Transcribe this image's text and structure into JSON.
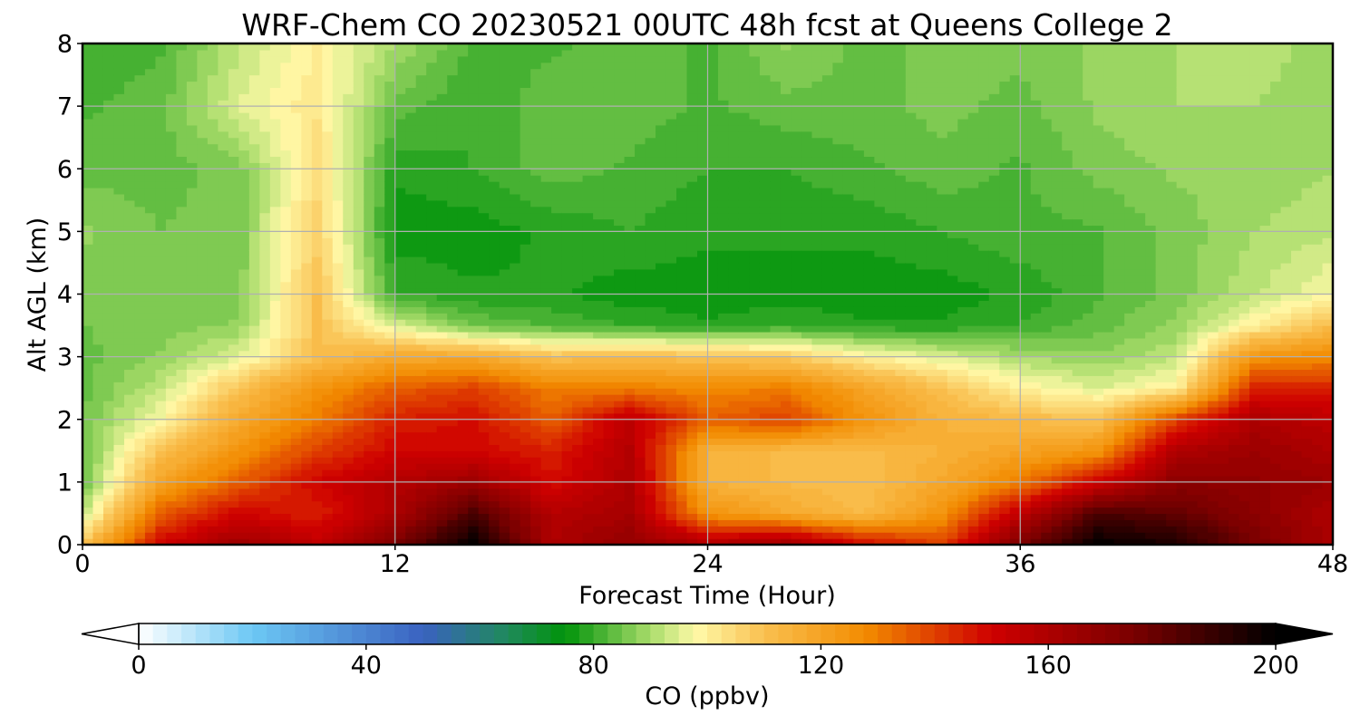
{
  "chart_data": {
    "type": "heatmap",
    "title": "WRF-Chem CO  20230521 00UTC 48h fcst at Queens College 2",
    "xlabel": "Forecast Time (Hour)",
    "ylabel": "Alt AGL (km)",
    "xlim": [
      0,
      48
    ],
    "ylim": [
      0,
      8
    ],
    "xticks": [
      0,
      12,
      24,
      36,
      48
    ],
    "yticks": [
      0,
      1,
      2,
      3,
      4,
      5,
      6,
      7,
      8
    ],
    "grid": true,
    "colorbar": {
      "label": "CO  (ppbv)",
      "vmin": 0,
      "vmax": 200,
      "ticks": [
        0,
        40,
        80,
        120,
        160,
        200
      ],
      "extend": "both",
      "stops": [
        {
          "v": 0,
          "color": "#ffffff"
        },
        {
          "v": 20,
          "color": "#6cc8f4"
        },
        {
          "v": 50,
          "color": "#3a62c0"
        },
        {
          "v": 65,
          "color": "#1f8a5a"
        },
        {
          "v": 75,
          "color": "#00930a"
        },
        {
          "v": 90,
          "color": "#a9dc6a"
        },
        {
          "v": 98,
          "color": "#fffaa8"
        },
        {
          "v": 110,
          "color": "#f9c050"
        },
        {
          "v": 128,
          "color": "#f28b00"
        },
        {
          "v": 150,
          "color": "#cf0000"
        },
        {
          "v": 175,
          "color": "#7a0000"
        },
        {
          "v": 200,
          "color": "#000000"
        }
      ]
    },
    "grid_x_hours": [
      0,
      3,
      6,
      9,
      12,
      15,
      18,
      21,
      24,
      27,
      30,
      33,
      36,
      39,
      42,
      45,
      48
    ],
    "grid_z_km": [
      0,
      0.5,
      1,
      1.5,
      2,
      2.5,
      3,
      3.5,
      4,
      5,
      6,
      7,
      8
    ],
    "values_ppbv": [
      [
        110,
        150,
        165,
        155,
        175,
        200,
        160,
        168,
        160,
        165,
        150,
        140,
        175,
        200,
        195,
        175,
        160
      ],
      [
        92,
        135,
        150,
        145,
        160,
        185,
        158,
        162,
        125,
        118,
        112,
        125,
        155,
        185,
        180,
        170,
        160
      ],
      [
        84,
        120,
        135,
        150,
        158,
        165,
        148,
        160,
        115,
        112,
        110,
        118,
        130,
        150,
        170,
        168,
        165
      ],
      [
        84,
        110,
        125,
        140,
        150,
        150,
        145,
        158,
        115,
        112,
        112,
        115,
        120,
        125,
        160,
        165,
        160
      ],
      [
        85,
        98,
        118,
        130,
        145,
        148,
        135,
        155,
        135,
        140,
        125,
        115,
        112,
        110,
        140,
        160,
        155
      ],
      [
        84,
        92,
        110,
        125,
        135,
        140,
        130,
        130,
        128,
        130,
        120,
        110,
        100,
        95,
        100,
        145,
        145
      ],
      [
        84,
        88,
        95,
        110,
        118,
        118,
        110,
        112,
        110,
        108,
        100,
        95,
        90,
        88,
        92,
        125,
        128
      ],
      [
        85,
        86,
        88,
        110,
        95,
        85,
        82,
        80,
        78,
        80,
        78,
        78,
        80,
        84,
        88,
        100,
        112
      ],
      [
        86,
        86,
        86,
        110,
        80,
        78,
        78,
        76,
        76,
        76,
        76,
        76,
        78,
        82,
        86,
        92,
        98
      ],
      [
        88,
        85,
        86,
        106,
        76,
        76,
        78,
        80,
        78,
        78,
        78,
        80,
        82,
        82,
        86,
        90,
        92
      ],
      [
        84,
        84,
        86,
        104,
        78,
        80,
        84,
        82,
        80,
        80,
        82,
        84,
        82,
        86,
        88,
        88,
        90
      ],
      [
        82,
        84,
        95,
        102,
        84,
        80,
        84,
        84,
        82,
        84,
        84,
        86,
        84,
        88,
        90,
        90,
        88
      ],
      [
        80,
        82,
        92,
        100,
        90,
        82,
        82,
        84,
        82,
        88,
        84,
        86,
        86,
        88,
        90,
        92,
        88
      ]
    ]
  }
}
